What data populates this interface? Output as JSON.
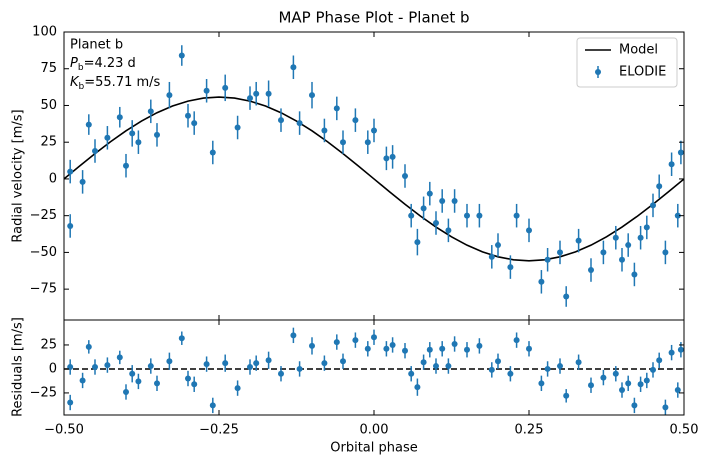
{
  "chart_data": [
    {
      "type": "scatter",
      "title": "MAP Phase Plot - Planet b",
      "ylabel": "Radial velocity [m/s]",
      "xlim": [
        -0.5,
        0.5
      ],
      "ylim": [
        -96,
        100
      ],
      "yticks": [
        {
          "value": -75,
          "label": "−75"
        },
        {
          "value": -50,
          "label": "−50"
        },
        {
          "value": -25,
          "label": "−25"
        },
        0,
        25,
        50,
        75,
        100
      ],
      "legend": "upper right",
      "annotation": {
        "name": "Planet b",
        "period": {
          "symbol": "P",
          "sub": "b",
          "text": "=4.23 d"
        },
        "amplitude": {
          "symbol": "K",
          "sub": "b",
          "text": "=55.71 m/s"
        }
      },
      "series": [
        {
          "name": "Model",
          "color": "#000000",
          "style": "line",
          "x": [
            -0.5,
            -0.475,
            -0.45,
            -0.425,
            -0.4,
            -0.375,
            -0.35,
            -0.325,
            -0.3,
            -0.275,
            -0.25,
            -0.225,
            -0.2,
            -0.175,
            -0.15,
            -0.125,
            -0.1,
            -0.075,
            -0.05,
            -0.025,
            0,
            0.025,
            0.05,
            0.075,
            0.1,
            0.125,
            0.15,
            0.175,
            0.2,
            0.225,
            0.25,
            0.275,
            0.3,
            0.325,
            0.35,
            0.375,
            0.4,
            0.425,
            0.45,
            0.475,
            0.5
          ],
          "values": [
            0,
            8.71,
            17.22,
            25.29,
            32.75,
            39.39,
            45.07,
            49.64,
            52.98,
            55.02,
            55.71,
            55.02,
            52.98,
            49.64,
            45.07,
            39.39,
            32.75,
            25.29,
            17.22,
            8.71,
            0,
            -8.71,
            -17.22,
            -25.29,
            -32.75,
            -39.39,
            -45.07,
            -49.64,
            -52.98,
            -55.02,
            -55.71,
            -55.02,
            -52.98,
            -49.64,
            -45.07,
            -39.39,
            -32.75,
            -25.29,
            -17.22,
            -8.71,
            0
          ]
        },
        {
          "name": "ELODIE",
          "color": "#1f77b4",
          "style": "errorbar",
          "x": [
            -0.49,
            -0.49,
            -0.47,
            -0.46,
            -0.45,
            -0.43,
            -0.41,
            -0.4,
            -0.39,
            -0.38,
            -0.36,
            -0.35,
            -0.33,
            -0.31,
            -0.3,
            -0.29,
            -0.27,
            -0.26,
            -0.24,
            -0.22,
            -0.2,
            -0.19,
            -0.17,
            -0.15,
            -0.13,
            -0.12,
            -0.1,
            -0.08,
            -0.06,
            -0.05,
            -0.03,
            -0.01,
            0,
            0.02,
            0.03,
            0.05,
            0.06,
            0.07,
            0.08,
            0.09,
            0.1,
            0.11,
            0.12,
            0.13,
            0.15,
            0.17,
            0.19,
            0.2,
            0.22,
            0.23,
            0.25,
            0.27,
            0.28,
            0.3,
            0.31,
            0.33,
            0.35,
            0.37,
            0.39,
            0.4,
            0.41,
            0.42,
            0.43,
            0.44,
            0.45,
            0.46,
            0.47,
            0.48,
            0.49,
            0.495
          ],
          "values": [
            5,
            -32,
            -2,
            37,
            19,
            28,
            42,
            9,
            31,
            25,
            46,
            30,
            57,
            84,
            43,
            38,
            60,
            18,
            62,
            35,
            55,
            58,
            58,
            40,
            76,
            38,
            57,
            33,
            48,
            25,
            40,
            25,
            33,
            14,
            15,
            2,
            -25,
            -43,
            -20,
            -10,
            -30,
            -15,
            -35,
            -15,
            -25,
            -25,
            -53,
            -45,
            -60,
            -25,
            -35,
            -70,
            -55,
            -50,
            -80,
            -42,
            -62,
            -50,
            -40,
            -55,
            -45,
            -65,
            -40,
            -33,
            -18,
            -5,
            -50,
            10,
            -25,
            18
          ],
          "errors": [
            8,
            8,
            8,
            7,
            8,
            8,
            7,
            8,
            9,
            8,
            8,
            8,
            9,
            7,
            8,
            8,
            8,
            8,
            9,
            8,
            8,
            8,
            9,
            8,
            8,
            8,
            9,
            8,
            8,
            8,
            8,
            8,
            8,
            8,
            8,
            8,
            8,
            9,
            8,
            8,
            8,
            8,
            8,
            8,
            8,
            8,
            8,
            8,
            8,
            8,
            8,
            8,
            8,
            8,
            7,
            8,
            8,
            8,
            8,
            8,
            8,
            8,
            8,
            8,
            8,
            8,
            8,
            8,
            8,
            8
          ]
        }
      ]
    },
    {
      "type": "scatter",
      "ylabel": "Residuals [m/s]",
      "xlabel": "Orbital phase",
      "xlim": [
        -0.5,
        0.5
      ],
      "ylim": [
        -48,
        51
      ],
      "xticks": [
        {
          "value": -0.5,
          "label": "−0.50"
        },
        {
          "value": -0.25,
          "label": "−0.25"
        },
        {
          "value": 0,
          "label": "0.00"
        },
        {
          "value": 0.25,
          "label": "0.25"
        },
        {
          "value": 0.5,
          "label": "0.50"
        }
      ],
      "yticks": [
        {
          "value": -25,
          "label": "−25"
        },
        0,
        25
      ],
      "hline": 0,
      "series": [
        {
          "color": "#1f77b4",
          "style": "errorbar",
          "values": [
            2,
            -35,
            -12,
            23,
            2,
            4,
            12,
            -24,
            -5,
            -13,
            3,
            -15,
            8,
            32,
            -10,
            -16,
            5,
            -38,
            6,
            -20,
            2,
            6,
            9,
            -5,
            35,
            0,
            24,
            6,
            28,
            8,
            30,
            21,
            33,
            21,
            25,
            19,
            -5,
            -19,
            7,
            20,
            3,
            21,
            3,
            26,
            20,
            24,
            -1,
            8,
            -5,
            30,
            21,
            -15,
            0,
            3,
            -28,
            7,
            -17,
            -9,
            -5,
            -22,
            -15,
            -38,
            -16,
            -12,
            -1,
            9,
            -40,
            17,
            -22,
            20
          ],
          "errors": [
            8,
            8,
            8,
            7,
            8,
            8,
            7,
            8,
            9,
            8,
            8,
            8,
            9,
            7,
            8,
            8,
            8,
            8,
            9,
            8,
            8,
            8,
            9,
            8,
            8,
            8,
            9,
            8,
            8,
            8,
            8,
            8,
            8,
            8,
            8,
            8,
            8,
            9,
            8,
            8,
            8,
            8,
            8,
            8,
            8,
            8,
            8,
            8,
            8,
            8,
            8,
            8,
            8,
            8,
            7,
            8,
            8,
            8,
            8,
            8,
            8,
            8,
            8,
            8,
            8,
            8,
            8,
            8,
            8,
            8
          ]
        }
      ]
    }
  ]
}
